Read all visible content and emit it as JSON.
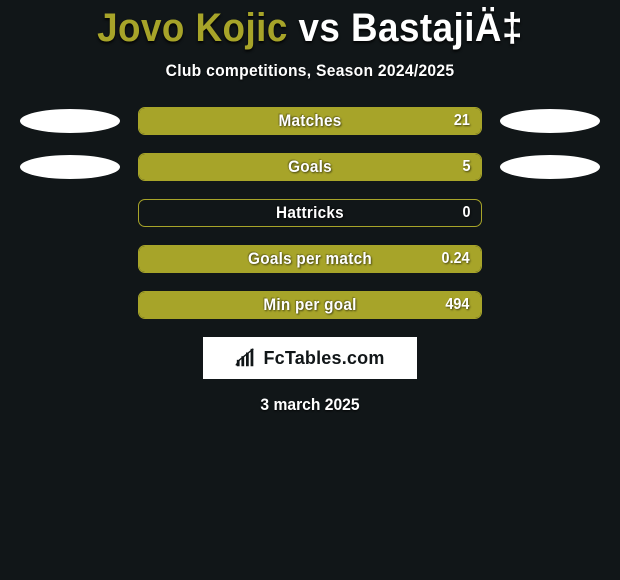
{
  "title_parts": {
    "player1": "Jovo Kojic",
    "vs": " vs ",
    "player2": "BastajiÄ‡"
  },
  "player_colors": {
    "player1": "#a7a429",
    "player2": "#ffffff"
  },
  "subtitle": "Club competitions, Season 2024/2025",
  "bar_style": {
    "border_color": "#a7a429",
    "fill_color": "#a7a429",
    "border_radius": 7,
    "height": 28
  },
  "ellipse_style": {
    "width": 100,
    "height": 24,
    "color": "#ffffff"
  },
  "background_color": "#111618",
  "stats": [
    {
      "label": "Matches",
      "value": "21",
      "fill_pct": 100,
      "show_ellipses": true
    },
    {
      "label": "Goals",
      "value": "5",
      "fill_pct": 100,
      "show_ellipses": true
    },
    {
      "label": "Hattricks",
      "value": "0",
      "fill_pct": 0,
      "show_ellipses": false
    },
    {
      "label": "Goals per match",
      "value": "0.24",
      "fill_pct": 100,
      "show_ellipses": false
    },
    {
      "label": "Min per goal",
      "value": "494",
      "fill_pct": 100,
      "show_ellipses": false
    }
  ],
  "branding": {
    "text": "FcTables.com",
    "icon": "bar-chart-icon"
  },
  "date": "3 march 2025"
}
